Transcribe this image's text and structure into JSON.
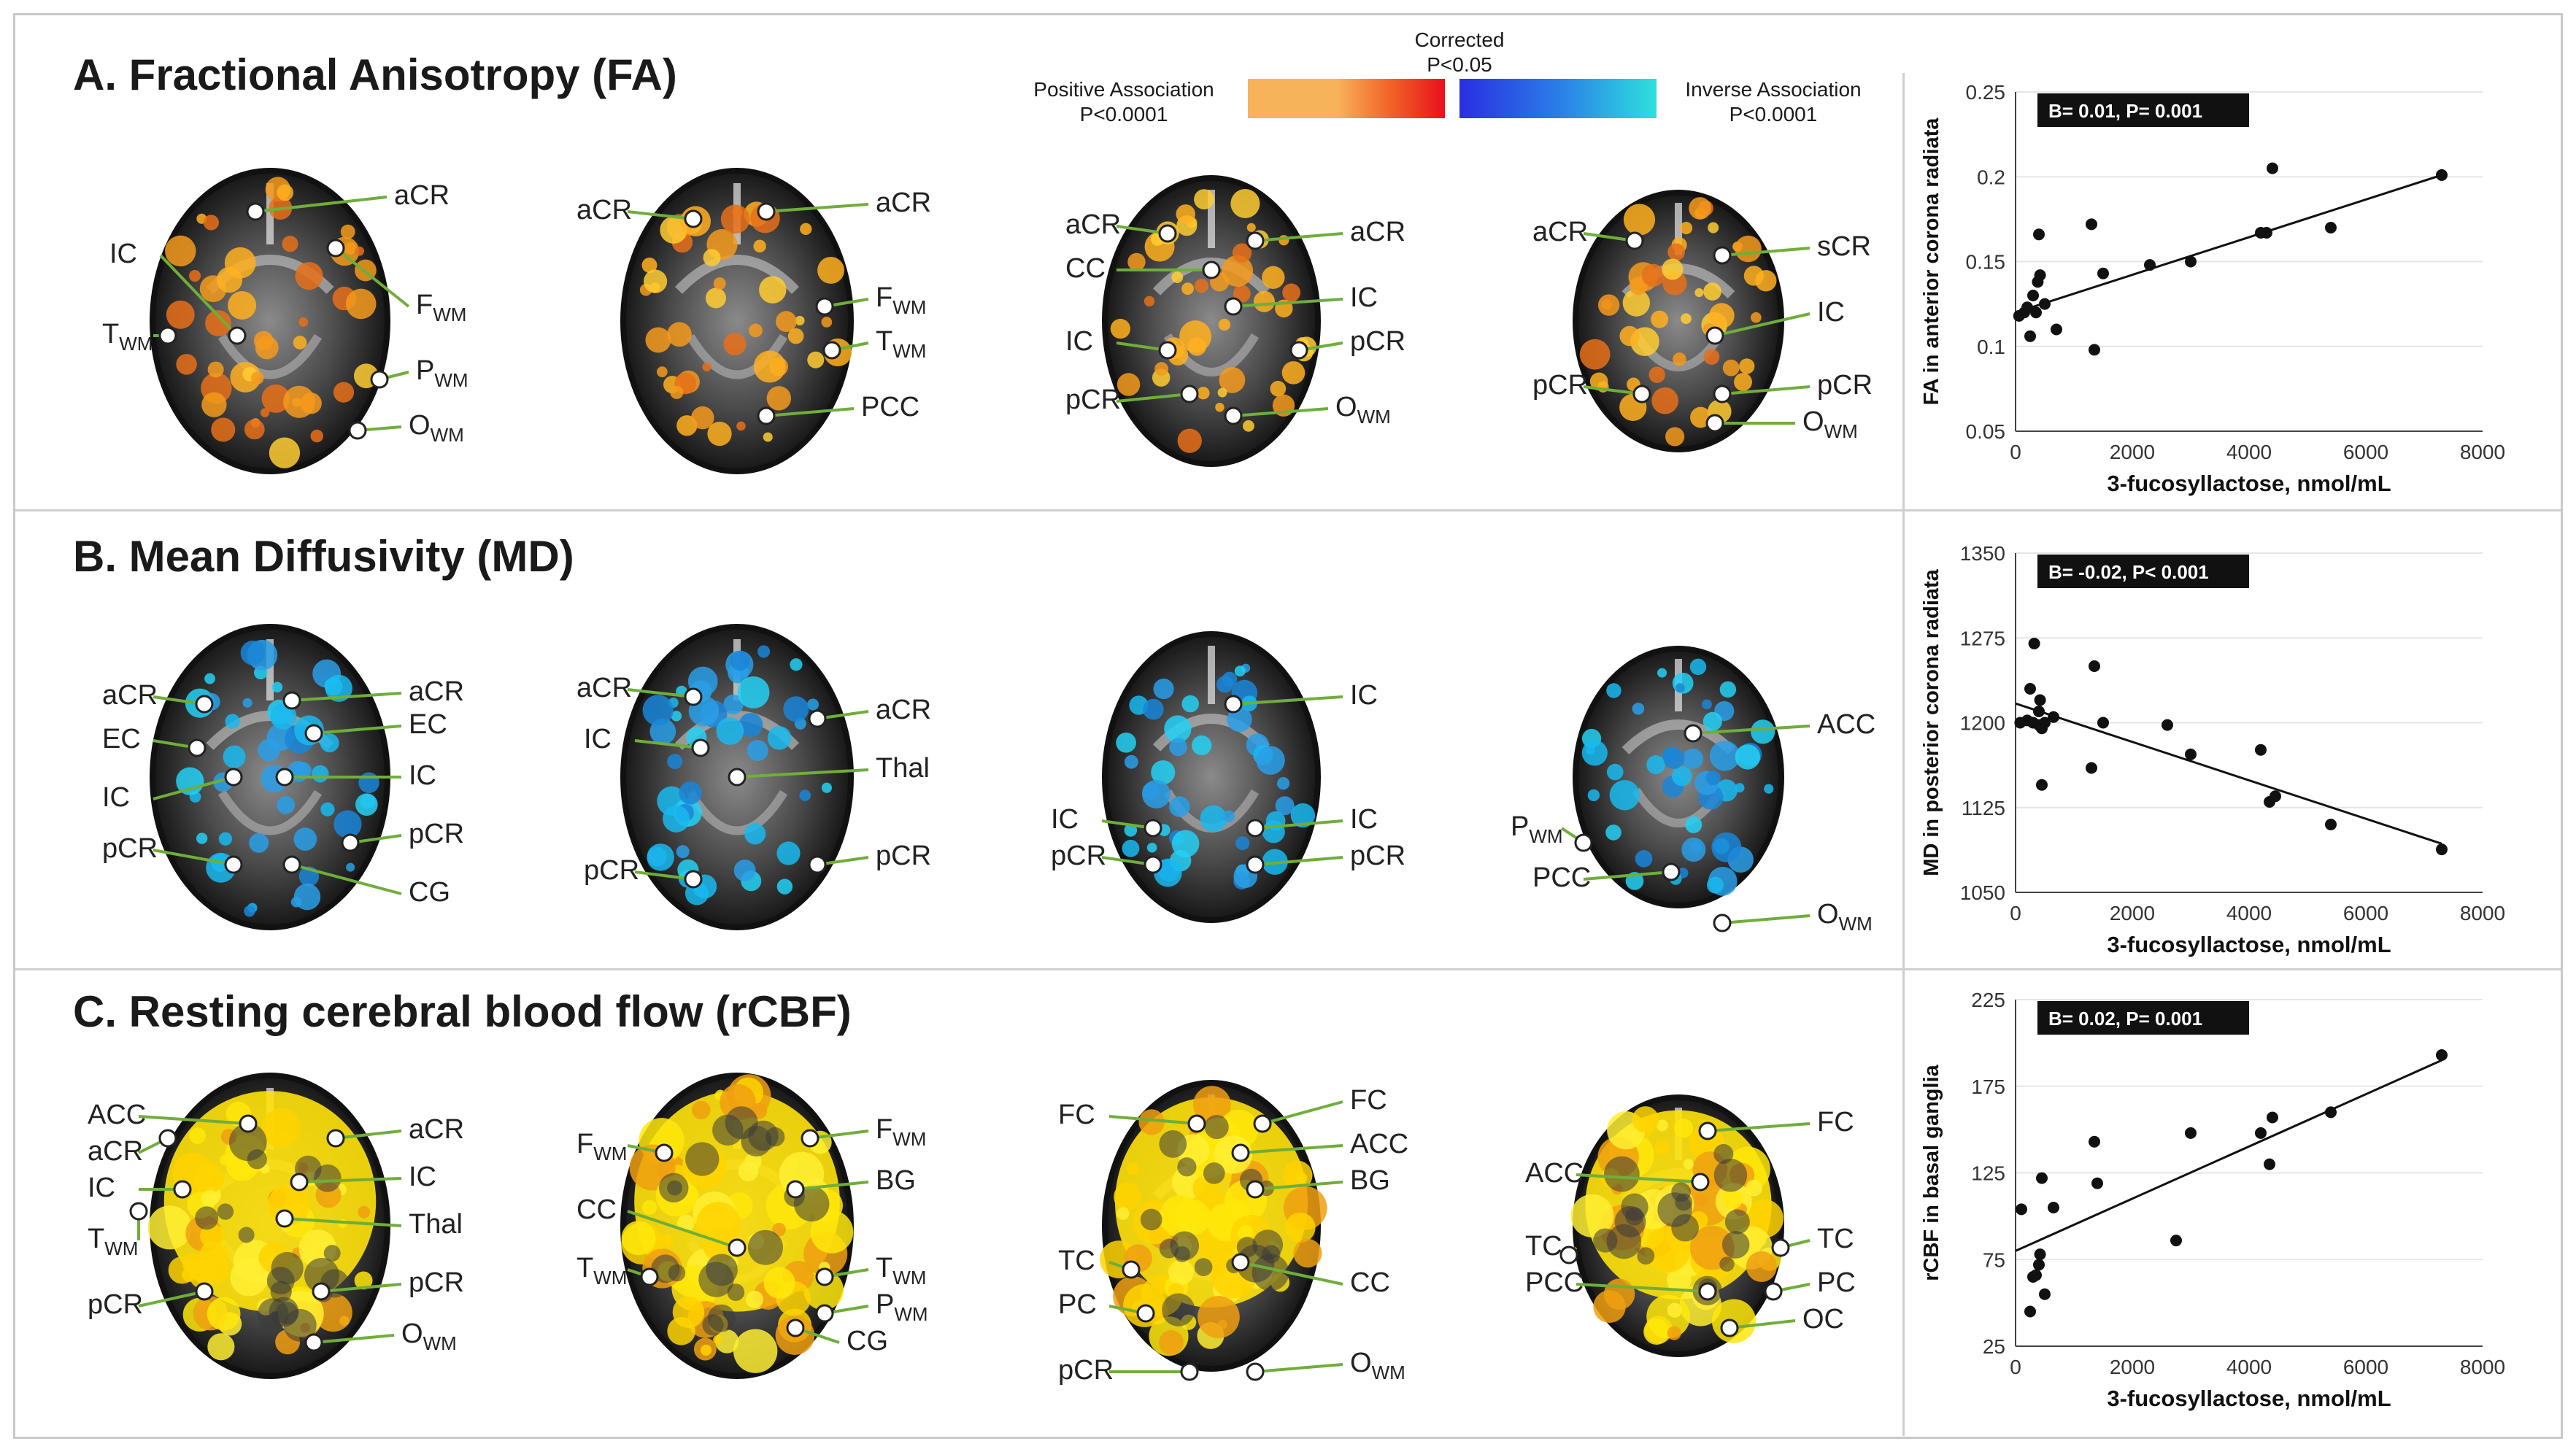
{
  "legend": {
    "positive_label": "Positive Association",
    "positive_p": "P<0.0001",
    "corrected_label": "Corrected",
    "corrected_p": "P<0.05",
    "inverse_label": "Inverse Association",
    "inverse_p": "P<0.0001",
    "colors": {
      "warm_start": "#f7b35a",
      "warm_mid": "#f26a2a",
      "warm_end": "#e8101a",
      "cool_start": "#2a2ee0",
      "cool_mid": "#2a7de8",
      "cool_end": "#2ee0dd"
    }
  },
  "rows": [
    {
      "title": "A. Fractional Anisotropy (FA)",
      "brains": [
        {
          "style": "orange",
          "labels": [
            {
              "text": "aCR"
            },
            {
              "text": "F",
              "sub": "WM"
            },
            {
              "text": "IC"
            },
            {
              "text": "T",
              "sub": "WM"
            },
            {
              "text": "P",
              "sub": "WM"
            },
            {
              "text": "O",
              "sub": "WM"
            }
          ]
        },
        {
          "style": "orange",
          "labels": [
            {
              "text": "aCR"
            },
            {
              "text": "aCR"
            },
            {
              "text": "F",
              "sub": "WM"
            },
            {
              "text": "T",
              "sub": "WM"
            },
            {
              "text": "PCC"
            }
          ]
        },
        {
          "style": "orange",
          "labels": [
            {
              "text": "aCR"
            },
            {
              "text": "aCR"
            },
            {
              "text": "CC"
            },
            {
              "text": "IC"
            },
            {
              "text": "IC"
            },
            {
              "text": "pCR"
            },
            {
              "text": "pCR"
            },
            {
              "text": "O",
              "sub": "WM"
            }
          ]
        },
        {
          "style": "orange",
          "labels": [
            {
              "text": "aCR"
            },
            {
              "text": "sCR"
            },
            {
              "text": "IC"
            },
            {
              "text": "pCR"
            },
            {
              "text": "pCR"
            },
            {
              "text": "O",
              "sub": "WM"
            }
          ]
        }
      ]
    },
    {
      "title": "B. Mean Diffusivity (MD)",
      "brains": [
        {
          "style": "blue",
          "labels": [
            {
              "text": "aCR"
            },
            {
              "text": "aCR"
            },
            {
              "text": "EC"
            },
            {
              "text": "EC"
            },
            {
              "text": "IC"
            },
            {
              "text": "IC"
            },
            {
              "text": "pCR"
            },
            {
              "text": "pCR"
            },
            {
              "text": "CG"
            }
          ]
        },
        {
          "style": "blue",
          "labels": [
            {
              "text": "aCR"
            },
            {
              "text": "aCR"
            },
            {
              "text": "IC"
            },
            {
              "text": "Thal"
            },
            {
              "text": "pCR"
            },
            {
              "text": "pCR"
            }
          ]
        },
        {
          "style": "blue",
          "labels": [
            {
              "text": "IC"
            },
            {
              "text": "IC"
            },
            {
              "text": "IC"
            },
            {
              "text": "pCR"
            },
            {
              "text": "pCR"
            }
          ]
        },
        {
          "style": "blue",
          "labels": [
            {
              "text": "ACC"
            },
            {
              "text": "P",
              "sub": "WM"
            },
            {
              "text": "PCC"
            },
            {
              "text": "O",
              "sub": "WM"
            }
          ]
        }
      ]
    },
    {
      "title": "C. Resting cerebral blood flow (rCBF)",
      "brains": [
        {
          "style": "yellow",
          "labels": [
            {
              "text": "ACC"
            },
            {
              "text": "aCR"
            },
            {
              "text": "aCR"
            },
            {
              "text": "IC"
            },
            {
              "text": "IC"
            },
            {
              "text": "T",
              "sub": "WM"
            },
            {
              "text": "Thal"
            },
            {
              "text": "pCR"
            },
            {
              "text": "pCR"
            },
            {
              "text": "O",
              "sub": "WM"
            }
          ]
        },
        {
          "style": "yellow",
          "labels": [
            {
              "text": "F",
              "sub": "WM"
            },
            {
              "text": "F",
              "sub": "WM"
            },
            {
              "text": "BG"
            },
            {
              "text": "CC"
            },
            {
              "text": "T",
              "sub": "WM"
            },
            {
              "text": "T",
              "sub": "WM"
            },
            {
              "text": "P",
              "sub": "WM"
            },
            {
              "text": "CG"
            }
          ]
        },
        {
          "style": "yellow",
          "labels": [
            {
              "text": "FC"
            },
            {
              "text": "FC"
            },
            {
              "text": "ACC"
            },
            {
              "text": "BG"
            },
            {
              "text": "TC"
            },
            {
              "text": "CC"
            },
            {
              "text": "PC"
            },
            {
              "text": "pCR"
            },
            {
              "text": "O",
              "sub": "WM"
            }
          ]
        },
        {
          "style": "yellow",
          "labels": [
            {
              "text": "FC"
            },
            {
              "text": "ACC"
            },
            {
              "text": "TC"
            },
            {
              "text": "TC"
            },
            {
              "text": "PC"
            },
            {
              "text": "PCC"
            },
            {
              "text": "OC"
            }
          ]
        }
      ]
    }
  ],
  "chart_data": [
    {
      "type": "scatter",
      "title": "",
      "annotation": "B= 0.01, P= 0.001",
      "xlabel": "3-fucosyllactose, nmol/mL",
      "ylabel": "FA in anterior corona radiata",
      "xlim": [
        0,
        8000
      ],
      "ylim": [
        0.05,
        0.25
      ],
      "xticks": [
        "0",
        "2000",
        "4000",
        "6000",
        "8000"
      ],
      "yticks": [
        "0.05",
        "0.1",
        "0.15",
        "0.2",
        "0.25"
      ],
      "points": [
        [
          60,
          0.118
        ],
        [
          150,
          0.12
        ],
        [
          200,
          0.123
        ],
        [
          250,
          0.106
        ],
        [
          300,
          0.13
        ],
        [
          350,
          0.12
        ],
        [
          380,
          0.138
        ],
        [
          400,
          0.166
        ],
        [
          420,
          0.142
        ],
        [
          500,
          0.125
        ],
        [
          700,
          0.11
        ],
        [
          1300,
          0.172
        ],
        [
          1350,
          0.098
        ],
        [
          1500,
          0.143
        ],
        [
          2300,
          0.148
        ],
        [
          3000,
          0.15
        ],
        [
          4200,
          0.167
        ],
        [
          4300,
          0.167
        ],
        [
          4400,
          0.205
        ],
        [
          5400,
          0.17
        ],
        [
          7300,
          0.201
        ]
      ],
      "fit": [
        [
          0,
          0.12
        ],
        [
          7300,
          0.201
        ]
      ]
    },
    {
      "type": "scatter",
      "title": "",
      "annotation": "B= -0.02, P< 0.001",
      "xlabel": "3-fucosyllactose, nmol/mL",
      "ylabel": "MD in posterior corona radiata",
      "xlim": [
        0,
        8000
      ],
      "ylim": [
        1050,
        1350
      ],
      "xticks": [
        "0",
        "2000",
        "4000",
        "6000",
        "8000"
      ],
      "yticks": [
        "1050",
        "1125",
        "1200",
        "1275",
        "1350"
      ],
      "points": [
        [
          80,
          1200
        ],
        [
          200,
          1202
        ],
        [
          250,
          1230
        ],
        [
          300,
          1200
        ],
        [
          320,
          1270
        ],
        [
          400,
          1210
        ],
        [
          400,
          1198
        ],
        [
          420,
          1220
        ],
        [
          450,
          1195
        ],
        [
          450,
          1145
        ],
        [
          500,
          1200
        ],
        [
          650,
          1205
        ],
        [
          1300,
          1160
        ],
        [
          1350,
          1250
        ],
        [
          1500,
          1200
        ],
        [
          2600,
          1198
        ],
        [
          3000,
          1172
        ],
        [
          4200,
          1176
        ],
        [
          4350,
          1130
        ],
        [
          4450,
          1135
        ],
        [
          5400,
          1110
        ],
        [
          7300,
          1088
        ]
      ],
      "fit": [
        [
          0,
          1217
        ],
        [
          7300,
          1093
        ]
      ]
    },
    {
      "type": "scatter",
      "title": "",
      "annotation": "B= 0.02, P= 0.001",
      "xlabel": "3-fucosyllactose, nmol/mL",
      "ylabel": "rCBF in basal ganglia",
      "xlim": [
        0,
        8000
      ],
      "ylim": [
        25,
        225
      ],
      "xticks": [
        "0",
        "2000",
        "4000",
        "6000",
        "8000"
      ],
      "yticks": [
        "25",
        "75",
        "125",
        "175",
        "225"
      ],
      "points": [
        [
          100,
          104
        ],
        [
          250,
          45
        ],
        [
          300,
          65
        ],
        [
          350,
          66
        ],
        [
          400,
          72
        ],
        [
          420,
          78
        ],
        [
          450,
          122
        ],
        [
          500,
          55
        ],
        [
          650,
          105
        ],
        [
          1350,
          143
        ],
        [
          1400,
          119
        ],
        [
          2750,
          86
        ],
        [
          3000,
          148
        ],
        [
          4200,
          148
        ],
        [
          4350,
          130
        ],
        [
          4400,
          157
        ],
        [
          5400,
          160
        ],
        [
          7300,
          193
        ]
      ],
      "fit": [
        [
          0,
          80
        ],
        [
          7300,
          190
        ]
      ]
    }
  ]
}
